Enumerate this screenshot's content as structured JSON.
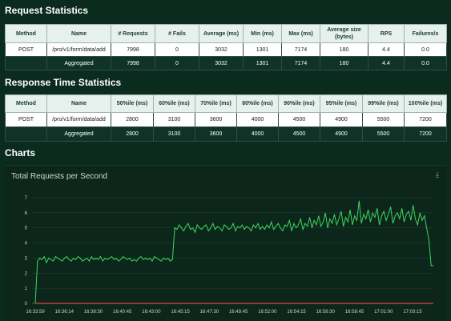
{
  "request_stats": {
    "title": "Request Statistics",
    "headers": [
      "Method",
      "Name",
      "# Requests",
      "# Fails",
      "Average (ms)",
      "Min (ms)",
      "Max (ms)",
      "Average size (bytes)",
      "RPS",
      "Failures/s"
    ],
    "rows": [
      [
        "POST",
        "/pro/v1/form/data/add",
        "7998",
        "0",
        "3032",
        "1301",
        "7174",
        "180",
        "4.4",
        "0.0"
      ],
      [
        "",
        "Aggregated",
        "7998",
        "0",
        "3032",
        "1301",
        "7174",
        "180",
        "4.4",
        "0.0"
      ]
    ]
  },
  "response_stats": {
    "title": "Response Time Statistics",
    "headers": [
      "Method",
      "Name",
      "50%ile (ms)",
      "60%ile (ms)",
      "70%ile (ms)",
      "80%ile (ms)",
      "90%ile (ms)",
      "95%ile (ms)",
      "99%ile (ms)",
      "100%ile (ms)"
    ],
    "rows": [
      [
        "POST",
        "/pro/v1/form/data/add",
        "2800",
        "3100",
        "3600",
        "4000",
        "4500",
        "4900",
        "5500",
        "7200"
      ],
      [
        "",
        "Aggregated",
        "2800",
        "3100",
        "3600",
        "4000",
        "4500",
        "4900",
        "5500",
        "7200"
      ]
    ]
  },
  "charts": {
    "title": "Charts",
    "download_icon": "download-icon"
  },
  "chart_data": {
    "type": "line",
    "title": "Total Requests per Second",
    "xlabel": "",
    "ylabel": "",
    "ylim": [
      0,
      7
    ],
    "y_ticks": [
      0,
      1,
      2,
      3,
      4,
      5,
      6,
      7
    ],
    "x_ticks": [
      "16:33:59",
      "16:36:14",
      "16:38:30",
      "16:40:45",
      "16:43:00",
      "16:45:15",
      "16:47:30",
      "16:49:45",
      "16:52:00",
      "16:54:15",
      "16:56:30",
      "16:58:45",
      "17:01:00",
      "17:03:15"
    ],
    "grid": true,
    "series": [
      {
        "name": "",
        "color": "#3ed65b",
        "values": [
          0,
          2.8,
          3.0,
          2.9,
          3.1,
          2.7,
          3.0,
          2.9,
          2.8,
          3.1,
          3.0,
          2.9,
          2.8,
          3.0,
          3.1,
          2.9,
          2.8,
          3.0,
          2.9,
          3.1,
          3.0,
          2.8,
          2.9,
          3.0,
          2.8,
          3.1,
          2.9,
          3.0,
          2.9,
          3.1,
          2.8,
          3.0,
          2.9,
          3.0,
          3.1,
          2.9,
          3.0,
          2.8,
          2.9,
          3.1,
          3.0,
          2.9,
          3.0,
          2.8,
          2.9,
          2.8,
          3.0,
          3.1,
          2.9,
          3.0,
          2.9,
          3.0,
          2.8,
          3.1,
          3.0,
          2.9,
          2.8,
          3.0,
          2.9,
          3.0,
          2.8,
          2.9,
          5.0,
          4.9,
          5.2,
          5.0,
          4.8,
          5.1,
          5.3,
          4.9,
          5.0,
          4.7,
          5.2,
          5.0,
          4.9,
          5.1,
          5.2,
          4.8,
          5.0,
          5.3,
          4.9,
          5.1,
          5.0,
          4.8,
          5.2,
          5.1,
          4.9,
          5.0,
          5.3,
          4.8,
          5.1,
          5.0,
          5.2,
          4.9,
          5.1,
          5.0,
          4.8,
          5.2,
          5.0,
          5.3,
          4.9,
          5.1,
          4.9,
          5.2,
          5.0,
          5.4,
          4.9,
          5.1,
          5.3,
          5.0,
          4.8,
          5.2,
          5.1,
          5.5,
          4.8,
          5.3,
          5.0,
          5.2,
          5.6,
          4.9,
          5.3,
          5.1,
          5.7,
          5.0,
          5.5,
          5.2,
          5.8,
          5.1,
          5.4,
          6.0,
          5.0,
          5.6,
          5.3,
          5.9,
          5.2,
          5.6,
          6.1,
          5.1,
          5.7,
          5.4,
          6.2,
          5.2,
          5.8,
          5.5,
          6.8,
          5.3,
          5.9,
          5.6,
          6.2,
          5.4,
          6.0,
          5.7,
          6.3,
          5.2,
          5.8,
          6.1,
          5.5,
          5.9,
          6.4,
          5.3,
          5.8,
          6.0,
          5.6,
          6.3,
          5.4,
          5.9,
          6.1,
          5.5,
          6.5,
          5.6,
          5.2,
          6.0,
          5.5,
          5.8,
          5.0,
          4.2,
          2.5,
          2.5
        ]
      },
      {
        "name": "",
        "color": "#e0443e",
        "values": [
          0,
          0,
          0
        ]
      }
    ]
  }
}
